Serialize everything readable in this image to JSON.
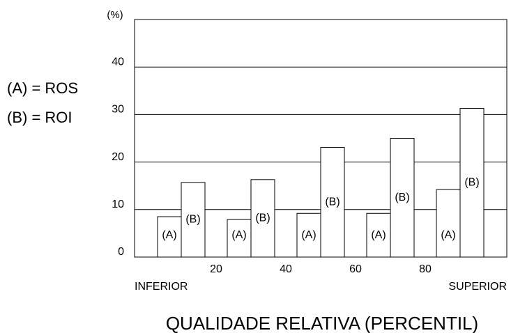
{
  "chart_data": {
    "type": "bar",
    "y_label": "(%)",
    "x_label": "QUALIDADE RELATIVA (PERCENTIL)",
    "x_left_label": "INFERIOR",
    "x_right_label": "SUPERIOR",
    "legend": [
      "(A) = ROS",
      "(B) = ROI"
    ],
    "categories": [
      null,
      null,
      null,
      null,
      null
    ],
    "series": [
      {
        "name": "(A)",
        "color": "#ffffff",
        "values": [
          8.5,
          7.9,
          9.2,
          9.2,
          14.2
        ]
      },
      {
        "name": "(B)",
        "color": "#ffffff",
        "values": [
          15.7,
          16.3,
          23.1,
          25.0,
          31.3
        ]
      }
    ],
    "xlim": [
      0,
      100
    ],
    "xticks": [
      20,
      40,
      60,
      80
    ],
    "ylim": [
      0,
      50
    ],
    "yticks": [
      0,
      10,
      20,
      30,
      40
    ],
    "grid": true
  }
}
